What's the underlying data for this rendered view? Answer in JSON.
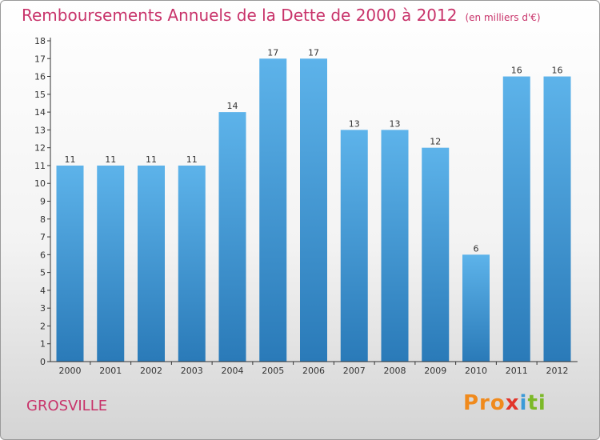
{
  "header": {
    "title": "Remboursements Annuels de la Dette de 2000 à 2012",
    "unit": "(en milliers d'€)"
  },
  "footer": {
    "town": "GROSVILLE",
    "logo": "Proxiti"
  },
  "colors": {
    "title": "#c8336a",
    "bar_top": "#5db3ea",
    "bar_bottom": "#2a7ab8",
    "axis": "#333333"
  },
  "chart_data": {
    "type": "bar",
    "categories": [
      "2000",
      "2001",
      "2002",
      "2003",
      "2004",
      "2005",
      "2006",
      "2007",
      "2008",
      "2009",
      "2010",
      "2011",
      "2012"
    ],
    "values": [
      11,
      11,
      11,
      11,
      14,
      17,
      17,
      13,
      13,
      12,
      6,
      16,
      16
    ],
    "data_labels": [
      "11",
      "11",
      "11",
      "11",
      "14",
      "17",
      "17",
      "13",
      "13",
      "12",
      "6",
      "16",
      "16"
    ],
    "yticks": [
      0,
      1,
      2,
      3,
      4,
      5,
      6,
      7,
      8,
      9,
      10,
      11,
      12,
      13,
      14,
      15,
      16,
      17,
      18
    ],
    "ylim": [
      0,
      18
    ],
    "grid": false,
    "legend": "none"
  }
}
